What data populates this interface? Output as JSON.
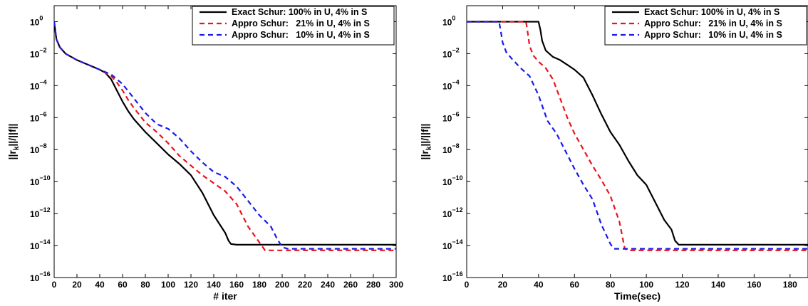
{
  "chart_data": [
    {
      "type": "line",
      "xlabel": "# iter",
      "ylabel": "||r_k||/||f||",
      "xlim": [
        0,
        300
      ],
      "ylim_log10": [
        -16,
        1
      ],
      "xticks": [
        "0",
        "20",
        "40",
        "60",
        "80",
        "100",
        "120",
        "140",
        "160",
        "180",
        "200",
        "220",
        "240",
        "260",
        "280",
        "300"
      ],
      "yticks": [
        {
          "base": "10",
          "exp": "0"
        },
        {
          "base": "10",
          "exp": "−2"
        },
        {
          "base": "10",
          "exp": "−4"
        },
        {
          "base": "10",
          "exp": "−6"
        },
        {
          "base": "10",
          "exp": "−8"
        },
        {
          "base": "10",
          "exp": "−10"
        },
        {
          "base": "10",
          "exp": "−12"
        },
        {
          "base": "10",
          "exp": "−14"
        },
        {
          "base": "10",
          "exp": "−16"
        }
      ],
      "legend_position": "top-right",
      "series": [
        {
          "name": "Exact Schur: 100% in U, 4% in S",
          "color": "#000000",
          "dash": "solid",
          "x": [
            0,
            2,
            5,
            10,
            20,
            30,
            40,
            45,
            50,
            55,
            60,
            65,
            70,
            80,
            90,
            100,
            110,
            120,
            130,
            140,
            150,
            153,
            155,
            160,
            200,
            250,
            300
          ],
          "y": [
            0,
            -1.1,
            -1.6,
            -2.0,
            -2.4,
            -2.7,
            -3.0,
            -3.2,
            -3.6,
            -4.3,
            -5.0,
            -5.6,
            -6.1,
            -6.9,
            -7.6,
            -8.3,
            -8.9,
            -9.6,
            -10.7,
            -12.1,
            -13.2,
            -13.7,
            -13.9,
            -13.95,
            -13.95,
            -13.95,
            -13.95
          ]
        },
        {
          "name": "Appro Schur:   21% in U, 4% in S",
          "color": "#e8141e",
          "dash": "dashed",
          "x": [
            0,
            2,
            5,
            10,
            20,
            30,
            40,
            50,
            55,
            60,
            65,
            70,
            80,
            90,
            100,
            110,
            120,
            130,
            140,
            150,
            160,
            170,
            180,
            185,
            190,
            200,
            250,
            300
          ],
          "y": [
            0,
            -1.1,
            -1.6,
            -2.0,
            -2.4,
            -2.7,
            -3.0,
            -3.4,
            -3.8,
            -4.3,
            -4.9,
            -5.4,
            -6.3,
            -6.9,
            -7.6,
            -8.4,
            -9.0,
            -9.6,
            -10.1,
            -10.6,
            -11.4,
            -12.8,
            -13.8,
            -14.3,
            -14.3,
            -14.3,
            -14.3,
            -14.3
          ]
        },
        {
          "name": "Appro Schur:   10% in U, 4% in S",
          "color": "#1a1aeb",
          "dash": "dashed",
          "x": [
            0,
            2,
            5,
            10,
            20,
            30,
            40,
            50,
            60,
            70,
            80,
            90,
            100,
            110,
            120,
            130,
            140,
            150,
            160,
            170,
            180,
            190,
            195,
            200,
            205,
            250,
            300
          ],
          "y": [
            0,
            -1.1,
            -1.6,
            -2.0,
            -2.4,
            -2.7,
            -3.0,
            -3.3,
            -3.9,
            -4.8,
            -5.7,
            -6.4,
            -6.7,
            -7.3,
            -8.1,
            -8.8,
            -9.4,
            -9.7,
            -10.3,
            -11.2,
            -12.1,
            -12.8,
            -13.5,
            -14.1,
            -14.2,
            -14.2,
            -14.2
          ]
        }
      ]
    },
    {
      "type": "line",
      "xlabel": "Time(sec)",
      "ylabel": "||r_k||/||f||",
      "xlim": [
        0,
        190
      ],
      "ylim_log10": [
        -16,
        1
      ],
      "xticks": [
        "0",
        "20",
        "40",
        "60",
        "80",
        "100",
        "120",
        "140",
        "160",
        "180"
      ],
      "yticks": [
        {
          "base": "10",
          "exp": "0"
        },
        {
          "base": "10",
          "exp": "−2"
        },
        {
          "base": "10",
          "exp": "−4"
        },
        {
          "base": "10",
          "exp": "−6"
        },
        {
          "base": "10",
          "exp": "−8"
        },
        {
          "base": "10",
          "exp": "−10"
        },
        {
          "base": "10",
          "exp": "−12"
        },
        {
          "base": "10",
          "exp": "−14"
        },
        {
          "base": "10",
          "exp": "−16"
        }
      ],
      "legend_position": "top-right",
      "series": [
        {
          "name": "Exact Schur: 100% in U, 4% in S",
          "color": "#000000",
          "dash": "solid",
          "x": [
            0,
            40,
            41,
            42,
            44,
            48,
            52,
            56,
            60,
            65,
            70,
            75,
            80,
            85,
            90,
            95,
            100,
            105,
            110,
            114,
            116,
            118,
            120,
            150,
            190
          ],
          "y": [
            0,
            0,
            -0.5,
            -1.2,
            -1.8,
            -2.2,
            -2.4,
            -2.7,
            -3.0,
            -3.5,
            -4.6,
            -5.8,
            -6.9,
            -7.7,
            -8.7,
            -9.6,
            -10.2,
            -11.3,
            -12.4,
            -13.0,
            -13.7,
            -13.95,
            -13.95,
            -13.95,
            -13.95
          ]
        },
        {
          "name": "Appro Schur:   21% in U, 4% in S",
          "color": "#e8141e",
          "dash": "dashed",
          "x": [
            0,
            33,
            34,
            35,
            37,
            40,
            44,
            48,
            52,
            56,
            60,
            65,
            70,
            75,
            80,
            85,
            88,
            90,
            120,
            150,
            190
          ],
          "y": [
            0,
            0,
            -0.7,
            -1.5,
            -2.1,
            -2.5,
            -2.9,
            -3.6,
            -4.8,
            -6.0,
            -7.0,
            -8.0,
            -9.0,
            -9.9,
            -10.9,
            -12.5,
            -14.2,
            -14.3,
            -14.3,
            -14.3,
            -14.3
          ]
        },
        {
          "name": "Appro Schur:   10% in U, 4% in S",
          "color": "#1a1aeb",
          "dash": "dashed",
          "x": [
            0,
            18,
            19,
            20,
            22,
            25,
            30,
            35,
            40,
            45,
            50,
            55,
            60,
            65,
            70,
            75,
            80,
            82,
            85,
            120,
            150,
            190
          ],
          "y": [
            0,
            0,
            -0.6,
            -1.3,
            -1.9,
            -2.3,
            -2.9,
            -3.4,
            -4.6,
            -6.2,
            -7.0,
            -8.1,
            -9.2,
            -10.2,
            -11.1,
            -12.7,
            -13.9,
            -14.2,
            -14.2,
            -14.2,
            -14.2,
            -14.2
          ]
        }
      ]
    }
  ]
}
